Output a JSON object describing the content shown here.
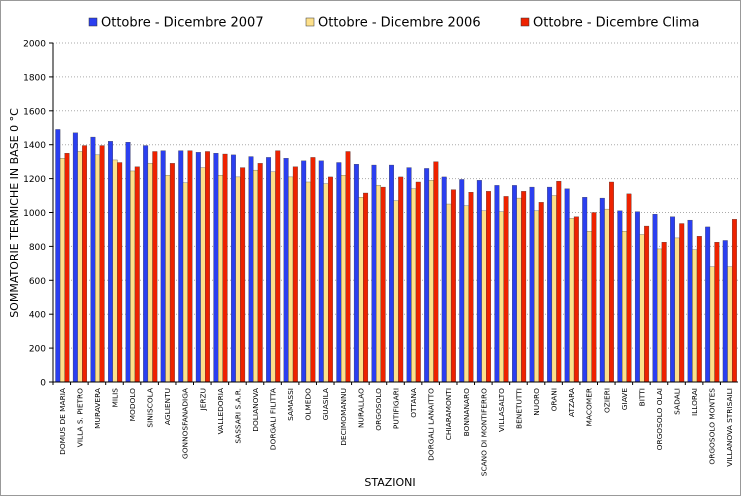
{
  "chart_data": {
    "type": "bar",
    "xlabel": "STAZIONI",
    "ylabel": "SOMMATORIE TERMICHE IN BASE 0 °C",
    "ylim": [
      0,
      2000
    ],
    "ytick_step": 200,
    "grid": true,
    "legend_position": "top",
    "categories": [
      "DOMUS DE MARIA",
      "VILLA S. PIETRO",
      "MURAVERA",
      "MILIS",
      "MODOLO",
      "SINISCOLA",
      "AGLIENTU",
      "GONNOSFANADIGA",
      "JERZU",
      "VALLEDORIA",
      "SASSARI S.A.R.",
      "DOLIANOVA",
      "DORGALI FILITTA",
      "SAMASSI",
      "OLMEDO",
      "GUASILA",
      "DECIMOMANNU",
      "NURALLAO",
      "ORGOSOLO",
      "PUTIFIGARI",
      "OTTANA",
      "DORGALI LANAITTO",
      "CHIARAMONTI",
      "BONNANARO",
      "SCANO DI MONTIFERRO",
      "VILLASALTO",
      "BENETUTTI",
      "NUORO",
      "ORANI",
      "ATZARA",
      "MACOMER",
      "OZIERI",
      "GIAVE",
      "BITTI",
      "ORGOSOLO OLAI",
      "SADALI",
      "ILLORAI",
      "ORGOSOLO MONTES",
      "VILLANOVA STRISAILI"
    ],
    "series": [
      {
        "name": "Ottobre - Dicembre 2007",
        "color": "#2b3ff0",
        "values": [
          1490,
          1470,
          1445,
          1420,
          1415,
          1395,
          1365,
          1365,
          1355,
          1350,
          1340,
          1330,
          1325,
          1320,
          1305,
          1305,
          1295,
          1285,
          1280,
          1280,
          1265,
          1260,
          1210,
          1195,
          1190,
          1160,
          1160,
          1150,
          1150,
          1140,
          1090,
          1085,
          1010,
          1005,
          990,
          975,
          955,
          915,
          835
        ]
      },
      {
        "name": "Ottobre - Dicembre 2006",
        "color": "#fde08a",
        "values": [
          1320,
          1360,
          1340,
          1310,
          1245,
          1290,
          1220,
          1175,
          1265,
          1220,
          1210,
          1250,
          1240,
          1210,
          1180,
          1170,
          1220,
          1090,
          1160,
          1070,
          1140,
          1190,
          1050,
          1040,
          1010,
          1005,
          1085,
          1010,
          1100,
          965,
          890,
          1020,
          890,
          870,
          785,
          850,
          780,
          680,
          680
        ]
      },
      {
        "name": "Ottobre - Dicembre Clima",
        "color": "#ee2200",
        "values": [
          1350,
          1395,
          1395,
          1295,
          1270,
          1360,
          1290,
          1365,
          1360,
          1345,
          1265,
          1290,
          1365,
          1270,
          1325,
          1210,
          1360,
          1115,
          1150,
          1210,
          1180,
          1300,
          1135,
          1120,
          1125,
          1095,
          1125,
          1060,
          1185,
          975,
          1000,
          1180,
          1110,
          920,
          825,
          935,
          860,
          825,
          960
        ]
      }
    ]
  }
}
